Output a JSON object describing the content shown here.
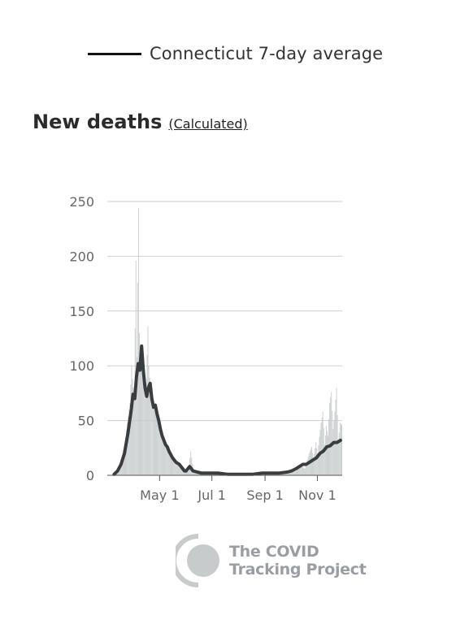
{
  "legend": {
    "label": "Connecticut 7-day average"
  },
  "header": {
    "title": "New deaths",
    "link": "(Calculated)"
  },
  "logo": {
    "line1": "The COVID",
    "line2": "Tracking Project"
  },
  "colors": {
    "bar": "#c7cbcb",
    "line": "#3a3d3f",
    "grid": "#cfcfcf",
    "axis": "#555555"
  },
  "chart_data": {
    "type": "bar",
    "ylim": [
      0,
      250
    ],
    "yticks": [
      0,
      50,
      100,
      150,
      200,
      250
    ],
    "xticks": [
      {
        "label": "May 1",
        "day": 61
      },
      {
        "label": "Jul 1",
        "day": 122
      },
      {
        "label": "Sep 1",
        "day": 184
      },
      {
        "label": "Nov 1",
        "day": 245
      }
    ],
    "day_range": [
      0,
      274
    ],
    "bar_points": [
      [
        7,
        1
      ],
      [
        12,
        4
      ],
      [
        16,
        12
      ],
      [
        20,
        28
      ],
      [
        23,
        48
      ],
      [
        26,
        66
      ],
      [
        28,
        100
      ],
      [
        29,
        88
      ],
      [
        31,
        72
      ],
      [
        33,
        196
      ],
      [
        34,
        108
      ],
      [
        36,
        244
      ],
      [
        37,
        130
      ],
      [
        38,
        102
      ],
      [
        40,
        112
      ],
      [
        41,
        96
      ],
      [
        42,
        90
      ],
      [
        44,
        70
      ],
      [
        45,
        84
      ],
      [
        47,
        136
      ],
      [
        48,
        100
      ],
      [
        50,
        78
      ],
      [
        52,
        68
      ],
      [
        54,
        60
      ],
      [
        56,
        66
      ],
      [
        58,
        50
      ],
      [
        60,
        44
      ],
      [
        62,
        40
      ],
      [
        64,
        40
      ],
      [
        66,
        28
      ],
      [
        68,
        30
      ],
      [
        70,
        26
      ],
      [
        72,
        24
      ],
      [
        74,
        20
      ],
      [
        76,
        18
      ],
      [
        78,
        16
      ],
      [
        80,
        10
      ],
      [
        82,
        9
      ],
      [
        85,
        8
      ],
      [
        88,
        6
      ],
      [
        91,
        4
      ],
      [
        94,
        3
      ],
      [
        97,
        22
      ],
      [
        100,
        5
      ],
      [
        105,
        3
      ],
      [
        110,
        2
      ],
      [
        120,
        2
      ],
      [
        130,
        1
      ],
      [
        140,
        1
      ],
      [
        150,
        1
      ],
      [
        160,
        1
      ],
      [
        170,
        1
      ],
      [
        180,
        2
      ],
      [
        190,
        2
      ],
      [
        200,
        3
      ],
      [
        210,
        2
      ],
      [
        220,
        4
      ],
      [
        225,
        10
      ],
      [
        230,
        6
      ],
      [
        235,
        20
      ],
      [
        238,
        26
      ],
      [
        240,
        14
      ],
      [
        243,
        30
      ],
      [
        245,
        20
      ],
      [
        247,
        35
      ],
      [
        249,
        48
      ],
      [
        251,
        58
      ],
      [
        253,
        28
      ],
      [
        255,
        45
      ],
      [
        257,
        36
      ],
      [
        259,
        66
      ],
      [
        261,
        76
      ],
      [
        263,
        42
      ],
      [
        265,
        58
      ],
      [
        267,
        80
      ],
      [
        269,
        30
      ],
      [
        271,
        48
      ],
      [
        273,
        46
      ]
    ],
    "avg_points": [
      [
        8,
        1
      ],
      [
        12,
        4
      ],
      [
        16,
        10
      ],
      [
        20,
        20
      ],
      [
        24,
        38
      ],
      [
        28,
        60
      ],
      [
        30,
        74
      ],
      [
        32,
        70
      ],
      [
        34,
        90
      ],
      [
        36,
        102
      ],
      [
        38,
        96
      ],
      [
        40,
        118
      ],
      [
        42,
        96
      ],
      [
        44,
        80
      ],
      [
        46,
        72
      ],
      [
        48,
        80
      ],
      [
        50,
        84
      ],
      [
        52,
        70
      ],
      [
        54,
        62
      ],
      [
        56,
        64
      ],
      [
        58,
        56
      ],
      [
        60,
        50
      ],
      [
        62,
        42
      ],
      [
        64,
        36
      ],
      [
        66,
        32
      ],
      [
        68,
        28
      ],
      [
        70,
        26
      ],
      [
        72,
        22
      ],
      [
        74,
        19
      ],
      [
        76,
        16
      ],
      [
        78,
        14
      ],
      [
        80,
        12
      ],
      [
        82,
        11
      ],
      [
        84,
        10
      ],
      [
        86,
        8
      ],
      [
        88,
        6
      ],
      [
        90,
        4
      ],
      [
        92,
        4
      ],
      [
        94,
        6
      ],
      [
        96,
        8
      ],
      [
        98,
        6
      ],
      [
        100,
        4
      ],
      [
        105,
        3
      ],
      [
        110,
        2
      ],
      [
        120,
        2
      ],
      [
        130,
        2
      ],
      [
        140,
        1
      ],
      [
        150,
        1
      ],
      [
        160,
        1
      ],
      [
        170,
        1
      ],
      [
        180,
        2
      ],
      [
        190,
        2
      ],
      [
        200,
        2
      ],
      [
        210,
        3
      ],
      [
        215,
        4
      ],
      [
        220,
        6
      ],
      [
        224,
        8
      ],
      [
        228,
        10
      ],
      [
        232,
        10
      ],
      [
        236,
        12
      ],
      [
        240,
        14
      ],
      [
        244,
        16
      ],
      [
        248,
        20
      ],
      [
        252,
        22
      ],
      [
        256,
        26
      ],
      [
        260,
        27
      ],
      [
        264,
        30
      ],
      [
        268,
        30
      ],
      [
        272,
        32
      ]
    ]
  }
}
